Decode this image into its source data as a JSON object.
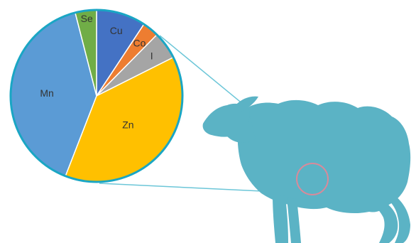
{
  "colors": {
    "sheep": "#5bb3c5",
    "connector": "#6cc6d8",
    "pie_border": "#1aa6c4",
    "highlight_circle": "#d98a9a",
    "slice_separator": "#ffffff"
  },
  "chart_data": {
    "type": "pie",
    "title": "",
    "start": "top",
    "direction": "clockwise",
    "legend": "none",
    "slices": [
      {
        "label": "Cu",
        "value": 9.3,
        "color": "#4472c4"
      },
      {
        "label": "Co",
        "value": 3.1,
        "color": "#ed7d31"
      },
      {
        "label": "I",
        "value": 5.2,
        "color": "#a5a5a5"
      },
      {
        "label": "Zn",
        "value": 38.3,
        "color": "#ffc000"
      },
      {
        "label": "Mn",
        "value": 40.1,
        "color": "#5b9bd5"
      },
      {
        "label": "Se",
        "value": 4.0,
        "color": "#70ad47"
      }
    ]
  }
}
